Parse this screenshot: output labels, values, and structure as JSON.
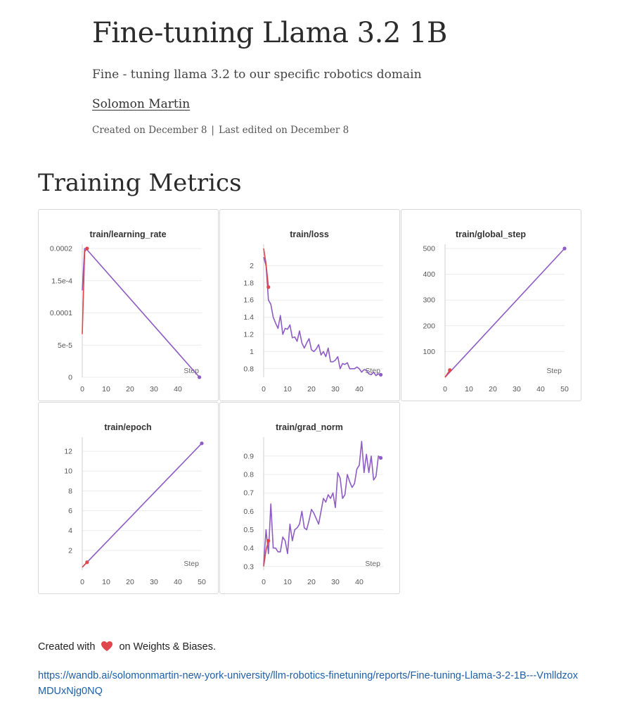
{
  "report": {
    "title": "Fine-tuning Llama 3.2 1B",
    "subtitle": "Fine - tuning llama 3.2 to our specific robotics domain",
    "author": "Solomon Martin",
    "created": "Created on December 8",
    "separator": "|",
    "edited": "Last edited on December 8"
  },
  "section": {
    "heading": "Training Metrics"
  },
  "colors": {
    "series_main": "#8e5cc4",
    "series_short": "#e0474c",
    "grid": "#ececec",
    "axis": "#9a9a9a",
    "tick_text": "#555555",
    "link": "#1f5fa8",
    "heart": "#e0474c"
  },
  "chart_data": [
    {
      "type": "line",
      "title": "train/learning_rate",
      "xlabel": "Step",
      "xlim": [
        0,
        50
      ],
      "xticks": [
        0,
        10,
        20,
        30,
        40
      ],
      "xtick_labels": [
        "0",
        "10",
        "20",
        "30",
        "40"
      ],
      "ylim": [
        0,
        0.0002
      ],
      "yticks": [
        0,
        5e-05,
        0.0001,
        0.00015,
        0.0002
      ],
      "ytick_labels": [
        "0",
        "5e-5",
        "0.0001",
        "1.5e-4",
        "0.0002"
      ],
      "series": [
        {
          "x": [
            0,
            1,
            2,
            49
          ],
          "y": [
            0.000135,
            0.0002,
            0.000198,
            1e-07
          ]
        },
        {
          "x": [
            0,
            1,
            2
          ],
          "y": [
            6.7e-05,
            0.000195,
            0.0002
          ]
        }
      ]
    },
    {
      "type": "line",
      "title": "train/loss",
      "xlabel": "Step",
      "xlim": [
        0,
        50
      ],
      "xticks": [
        0,
        10,
        20,
        30,
        40
      ],
      "xtick_labels": [
        "0",
        "10",
        "20",
        "30",
        "40"
      ],
      "ylim": [
        0.7,
        2.2
      ],
      "yticks": [
        0.8,
        1,
        1.2,
        1.4,
        1.6,
        1.8,
        2
      ],
      "ytick_labels": [
        "0.8",
        "1",
        "1.2",
        "1.4",
        "1.6",
        "1.8",
        "2"
      ],
      "series": [
        {
          "x": [
            0,
            1,
            2,
            3,
            4,
            5,
            6,
            7,
            8,
            9,
            10,
            11,
            12,
            13,
            14,
            15,
            16,
            17,
            18,
            19,
            20,
            21,
            22,
            23,
            24,
            25,
            26,
            27,
            28,
            29,
            30,
            31,
            32,
            33,
            34,
            35,
            36,
            37,
            38,
            39,
            40,
            41,
            42,
            43,
            44,
            45,
            46,
            47,
            48,
            49
          ],
          "y": [
            2.1,
            2.0,
            1.6,
            1.55,
            1.4,
            1.33,
            1.27,
            1.42,
            1.2,
            1.27,
            1.26,
            1.31,
            1.16,
            1.17,
            1.12,
            1.24,
            1.1,
            1.04,
            1.1,
            1.15,
            1.02,
            1.0,
            1.03,
            1.08,
            0.96,
            1.0,
            0.94,
            1.04,
            0.88,
            0.88,
            0.9,
            0.94,
            0.8,
            0.86,
            0.85,
            0.87,
            0.8,
            0.8,
            0.8,
            0.82,
            0.8,
            0.76,
            0.79,
            0.78,
            0.74,
            0.73,
            0.76,
            0.72,
            0.74,
            0.73
          ]
        },
        {
          "x": [
            0,
            1,
            2
          ],
          "y": [
            2.2,
            2.02,
            1.75
          ]
        }
      ]
    },
    {
      "type": "line",
      "title": "train/global_step",
      "xlabel": "Step",
      "xlim": [
        0,
        50
      ],
      "xticks": [
        0,
        10,
        20,
        30,
        40,
        50
      ],
      "xtick_labels": [
        "0",
        "10",
        "20",
        "30",
        "40",
        "50"
      ],
      "ylim": [
        0,
        500
      ],
      "yticks": [
        100,
        200,
        300,
        400,
        500
      ],
      "ytick_labels": [
        "100",
        "200",
        "300",
        "400",
        "500"
      ],
      "series": [
        {
          "x": [
            0,
            50
          ],
          "y": [
            0,
            500
          ]
        },
        {
          "x": [
            0,
            2
          ],
          "y": [
            0,
            28
          ]
        }
      ]
    },
    {
      "type": "line",
      "title": "train/epoch",
      "xlabel": "Step",
      "xlim": [
        0,
        50
      ],
      "xticks": [
        0,
        10,
        20,
        30,
        40,
        50
      ],
      "xtick_labels": [
        "0",
        "10",
        "20",
        "30",
        "40",
        "50"
      ],
      "ylim": [
        0,
        13
      ],
      "yticks": [
        2,
        4,
        6,
        8,
        10,
        12
      ],
      "ytick_labels": [
        "2",
        "4",
        "6",
        "8",
        "10",
        "12"
      ],
      "series": [
        {
          "x": [
            0,
            50
          ],
          "y": [
            0.3,
            12.8
          ]
        },
        {
          "x": [
            0,
            2
          ],
          "y": [
            0.3,
            0.8
          ]
        }
      ]
    },
    {
      "type": "line",
      "title": "train/grad_norm",
      "xlabel": "Step",
      "xlim": [
        0,
        50
      ],
      "xticks": [
        0,
        10,
        20,
        30,
        40
      ],
      "xtick_labels": [
        "0",
        "10",
        "20",
        "30",
        "40"
      ],
      "ylim": [
        0.28,
        0.98
      ],
      "yticks": [
        0.3,
        0.4,
        0.5,
        0.6,
        0.7,
        0.8,
        0.9
      ],
      "ytick_labels": [
        "0.3",
        "0.4",
        "0.5",
        "0.6",
        "0.7",
        "0.8",
        "0.9"
      ],
      "series": [
        {
          "x": [
            0,
            1,
            2,
            3,
            4,
            5,
            6,
            7,
            8,
            9,
            10,
            11,
            12,
            13,
            14,
            15,
            16,
            17,
            18,
            19,
            20,
            21,
            22,
            23,
            24,
            25,
            26,
            27,
            28,
            29,
            30,
            31,
            32,
            33,
            34,
            35,
            36,
            37,
            38,
            39,
            40,
            41,
            42,
            43,
            44,
            45,
            46,
            47,
            48,
            49
          ],
          "y": [
            0.31,
            0.5,
            0.37,
            0.64,
            0.4,
            0.4,
            0.38,
            0.38,
            0.46,
            0.44,
            0.37,
            0.53,
            0.44,
            0.5,
            0.51,
            0.53,
            0.6,
            0.51,
            0.5,
            0.55,
            0.61,
            0.59,
            0.56,
            0.53,
            0.6,
            0.67,
            0.65,
            0.69,
            0.67,
            0.7,
            0.62,
            0.81,
            0.78,
            0.67,
            0.69,
            0.8,
            0.76,
            0.73,
            0.75,
            0.83,
            0.85,
            0.98,
            0.81,
            0.91,
            0.81,
            0.9,
            0.77,
            0.79,
            0.9,
            0.89
          ]
        },
        {
          "x": [
            0,
            1,
            2
          ],
          "y": [
            0.3,
            0.39,
            0.44
          ]
        }
      ]
    }
  ],
  "footer": {
    "credit_prefix": "Created with",
    "credit_suffix": "on Weights & Biases.",
    "link_text": "https://wandb.ai/solomonmartin-new-york-university/llm-robotics-finetuning/reports/Fine-tuning-Llama-3-2-1B---VmlldzoxMDUxNjg0NQ"
  }
}
